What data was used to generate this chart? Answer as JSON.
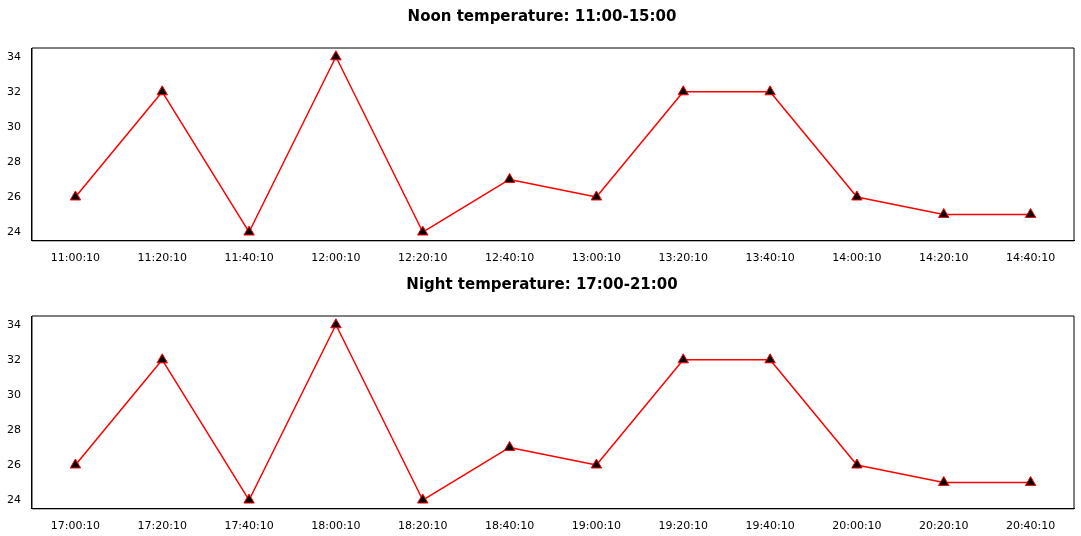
{
  "chart_data": [
    {
      "type": "line",
      "title": "Noon temperature: 11:00-15:00",
      "categories": [
        "11:00:10",
        "11:20:10",
        "11:40:10",
        "12:00:10",
        "12:20:10",
        "12:40:10",
        "13:00:10",
        "13:20:10",
        "13:40:10",
        "14:00:10",
        "14:20:10",
        "14:40:10"
      ],
      "series": [
        {
          "color": "#ff0000",
          "values": [
            26,
            32,
            24,
            34,
            24,
            27,
            26,
            32,
            32,
            26,
            25,
            25
          ]
        }
      ],
      "ylim": [
        23.5,
        34.5
      ],
      "yticks": [
        24,
        26,
        28,
        30,
        32,
        34
      ],
      "grid": false,
      "legend": false,
      "marker": "triangle",
      "line_style": "solid"
    },
    {
      "type": "line",
      "title": "Night temperature: 17:00-21:00",
      "categories": [
        "17:00:10",
        "17:20:10",
        "17:40:10",
        "18:00:10",
        "18:20:10",
        "18:40:10",
        "19:00:10",
        "19:20:10",
        "19:40:10",
        "20:00:10",
        "20:20:10",
        "20:40:10"
      ],
      "series": [
        {
          "color": "#ff0000",
          "values": [
            26,
            32,
            24,
            34,
            24,
            27,
            26,
            32,
            32,
            26,
            25,
            25
          ]
        }
      ],
      "ylim": [
        23.5,
        34.5
      ],
      "yticks": [
        24,
        26,
        28,
        30,
        32,
        34
      ],
      "grid": false,
      "legend": false,
      "marker": "triangle",
      "line_style": "solid"
    }
  ]
}
